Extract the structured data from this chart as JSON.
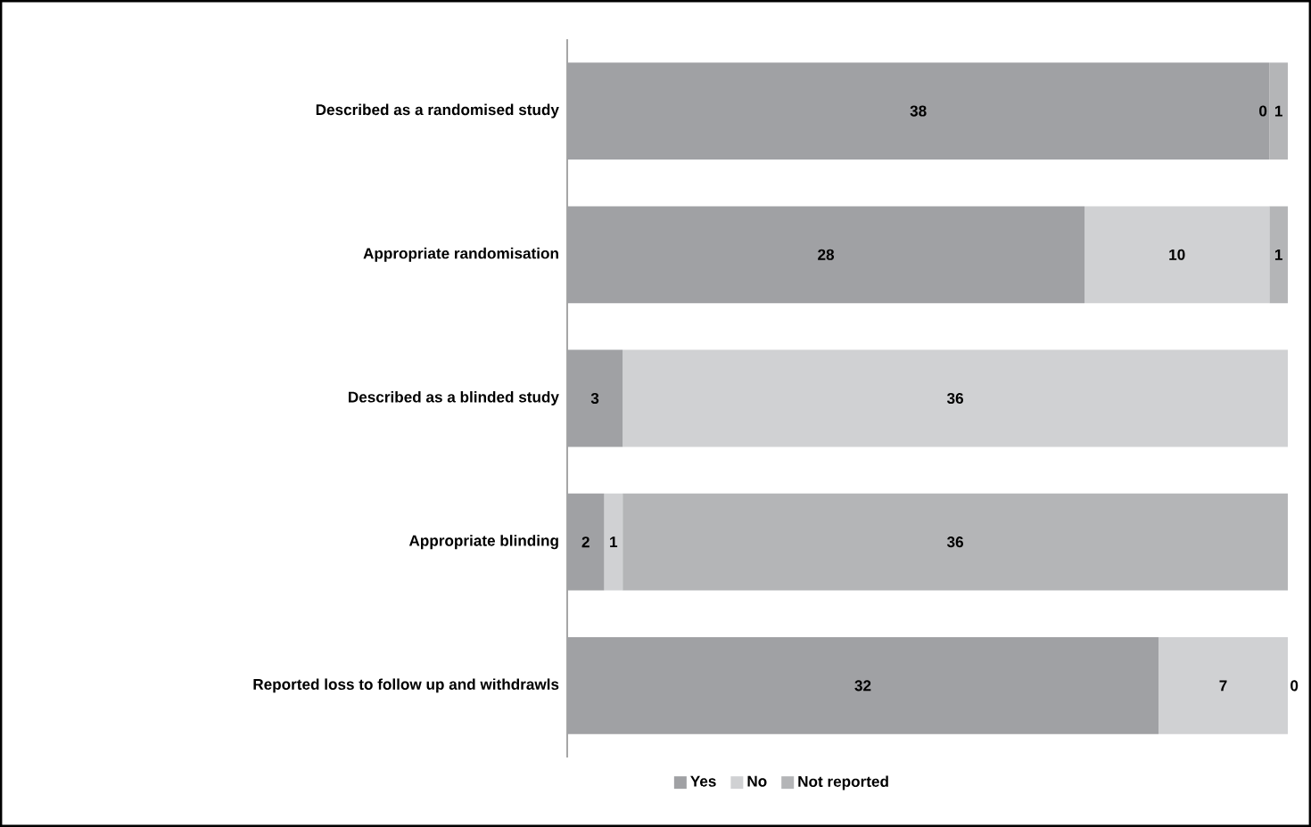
{
  "chart_data": {
    "type": "bar",
    "orientation": "horizontal",
    "stacked": true,
    "legend": "bottom",
    "categories": [
      "Described as a randomised study",
      "Appropriate randomisation",
      "Described as a blinded study",
      "Appropriate blinding",
      "Reported loss to follow up and withdrawls"
    ],
    "series": [
      {
        "name": "Yes",
        "color": "#a0a1a4",
        "values": [
          38,
          28,
          3,
          2,
          32
        ],
        "value_labels": [
          "38",
          "28",
          "3",
          "2",
          "32"
        ]
      },
      {
        "name": "No",
        "color": "#d0d1d3",
        "values": [
          0,
          10,
          36,
          1,
          7
        ],
        "value_labels": [
          "0",
          "10",
          "36",
          "1",
          "7"
        ]
      },
      {
        "name": "Not reported",
        "color": "#b4b5b7",
        "values": [
          1,
          1,
          0,
          36,
          0
        ],
        "value_labels": [
          "1",
          "1",
          null,
          "36",
          "0"
        ]
      }
    ]
  }
}
